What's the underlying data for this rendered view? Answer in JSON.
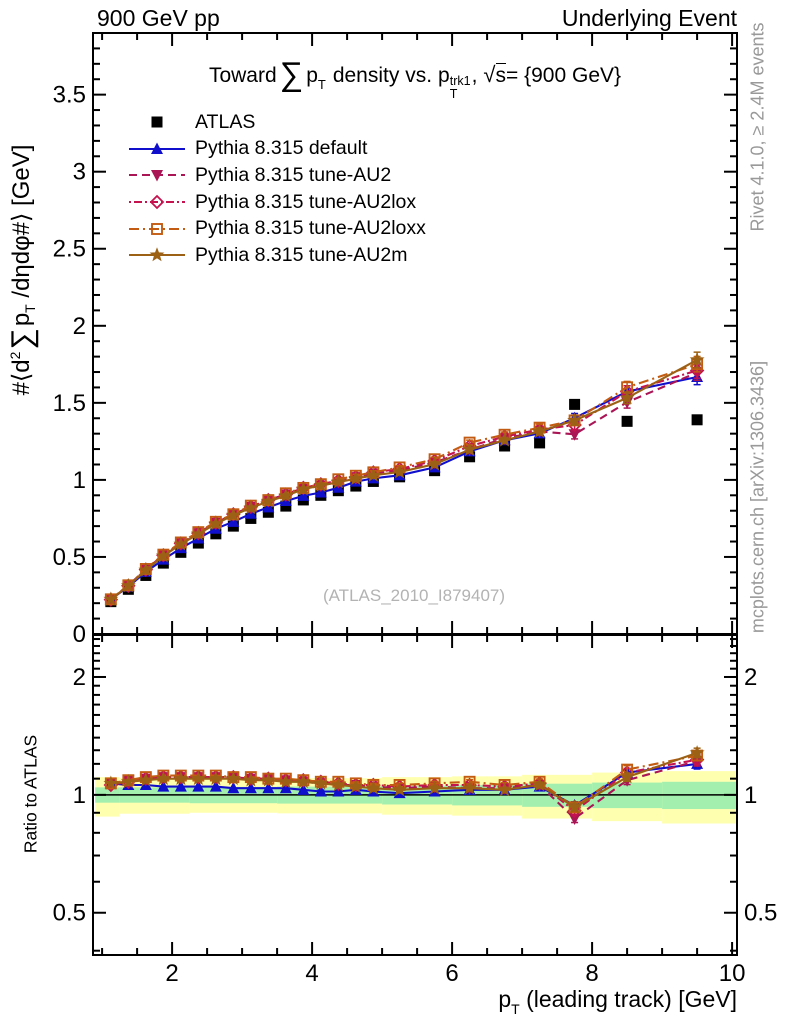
{
  "header": {
    "left": "900 GeV pp",
    "right": "Underlying Event"
  },
  "title": {
    "t1": "Toward",
    "sigma": "∑",
    "p1": "p",
    "sub1": "T",
    "t2": "density vs.",
    "p2": "p",
    "sup2": "trk1",
    "sub2": "T",
    "t3": ",",
    "sqrt": "√",
    "s": "s",
    "t4": " = {900 GeV}"
  },
  "axes": {
    "y_label": {
      "a": "#⟨d",
      "sup": "2",
      "sigma": "∑",
      "b": "p",
      "sub": "T",
      "c": " /dηdφ#⟩ [GeV]"
    },
    "x_label": {
      "p": "p",
      "sub": "T",
      "rest": " (leading track) [GeV]"
    },
    "ratio_label": "Ratio to ATLAS"
  },
  "side_notes": {
    "top": "Rivet 4.1.0, ≥ 2.4M events",
    "bottom": "mcplots.cern.ch [arXiv:1306.3436]"
  },
  "watermark": "(ATLAS_2010_I879407)",
  "chart_data": {
    "type": "line",
    "title": "Toward ∑ pT density vs. pT^trk1, √s = {900 GeV}",
    "xlabel": "pT (leading track) [GeV]",
    "ylabel": "#⟨d²∑ pT /dηdφ#⟩ [GeV]",
    "ratio_ylabel": "Ratio to ATLAS",
    "xlim": [
      0.87,
      10.07
    ],
    "ylim": [
      0,
      3.9
    ],
    "ratio_ylim": [
      0.39,
      2.56
    ],
    "ratio_scale": "log",
    "xticks": [
      2,
      4,
      6,
      8,
      10
    ],
    "x_minor_step": 0.5,
    "yticks": [
      0,
      0.5,
      1,
      1.5,
      2,
      2.5,
      3,
      3.5
    ],
    "y_minor_step": 0.1,
    "ratio_yticks": [
      0.5,
      1,
      2
    ],
    "ratio_minor_ticks": [
      0.4,
      0.6,
      0.7,
      0.8,
      0.9,
      1.1,
      1.2,
      1.3,
      1.4,
      1.5,
      1.6,
      1.7,
      1.8,
      1.9,
      2.1,
      2.2,
      2.3,
      2.4,
      2.5
    ],
    "grid": false,
    "legend_position": "top-left",
    "x": [
      1.125,
      1.375,
      1.625,
      1.875,
      2.125,
      2.375,
      2.625,
      2.875,
      3.125,
      3.375,
      3.625,
      3.875,
      4.125,
      4.375,
      4.625,
      4.875,
      5.25,
      5.75,
      6.25,
      6.75,
      7.25,
      7.75,
      8.5,
      9.5
    ],
    "reference": {
      "label": "ATLAS",
      "color": "#000000",
      "marker": "square-filled",
      "values": [
        0.21,
        0.29,
        0.38,
        0.46,
        0.53,
        0.59,
        0.65,
        0.7,
        0.75,
        0.79,
        0.83,
        0.87,
        0.9,
        0.93,
        0.96,
        0.99,
        1.02,
        1.06,
        1.15,
        1.22,
        1.24,
        1.49,
        1.38,
        1.39
      ]
    },
    "series": [
      {
        "label": "Pythia 8.315 default",
        "color": "#1010cc",
        "marker": "triangle-up",
        "line": "solid",
        "values": [
          0.225,
          0.307,
          0.403,
          0.483,
          0.557,
          0.62,
          0.683,
          0.728,
          0.78,
          0.822,
          0.863,
          0.896,
          0.918,
          0.949,
          0.989,
          1.01,
          1.03,
          1.081,
          1.185,
          1.257,
          1.302,
          1.401,
          1.573,
          1.668
        ],
        "ratio": [
          1.07,
          1.06,
          1.06,
          1.05,
          1.05,
          1.05,
          1.05,
          1.04,
          1.04,
          1.04,
          1.04,
          1.03,
          1.02,
          1.02,
          1.03,
          1.02,
          1.01,
          1.02,
          1.03,
          1.03,
          1.05,
          0.94,
          1.14,
          1.2
        ]
      },
      {
        "label": "Pythia 8.315 tune-AU2",
        "color": "#aa1556",
        "marker": "triangle-down",
        "line": "dash",
        "values": [
          0.225,
          0.316,
          0.418,
          0.511,
          0.588,
          0.655,
          0.722,
          0.777,
          0.825,
          0.869,
          0.905,
          0.94,
          0.963,
          0.986,
          1.018,
          1.04,
          1.061,
          1.113,
          1.196,
          1.269,
          1.314,
          1.296,
          1.504,
          1.696
        ],
        "ratio": [
          1.07,
          1.09,
          1.1,
          1.11,
          1.11,
          1.11,
          1.11,
          1.11,
          1.1,
          1.1,
          1.09,
          1.08,
          1.07,
          1.06,
          1.06,
          1.05,
          1.04,
          1.05,
          1.04,
          1.04,
          1.06,
          0.87,
          1.09,
          1.22
        ]
      },
      {
        "label": "Pythia 8.315 tune-AU2lox",
        "color": "#c4134e",
        "marker": "diamond-open",
        "line": "dashdot",
        "values": [
          0.223,
          0.313,
          0.418,
          0.511,
          0.588,
          0.655,
          0.722,
          0.777,
          0.825,
          0.869,
          0.905,
          0.948,
          0.972,
          0.995,
          1.018,
          1.049,
          1.071,
          1.124,
          1.219,
          1.281,
          1.327,
          1.356,
          1.573,
          1.71
        ],
        "ratio": [
          1.06,
          1.08,
          1.1,
          1.11,
          1.11,
          1.11,
          1.11,
          1.11,
          1.1,
          1.1,
          1.09,
          1.09,
          1.08,
          1.07,
          1.06,
          1.06,
          1.05,
          1.06,
          1.06,
          1.05,
          1.07,
          0.91,
          1.14,
          1.23
        ]
      },
      {
        "label": "Pythia 8.315 tune-AU2loxx",
        "color": "#c35c12",
        "marker": "square-open",
        "line": "longdashdot",
        "values": [
          0.225,
          0.316,
          0.422,
          0.515,
          0.594,
          0.661,
          0.728,
          0.777,
          0.833,
          0.869,
          0.913,
          0.948,
          0.972,
          1.004,
          1.027,
          1.049,
          1.081,
          1.134,
          1.242,
          1.293,
          1.339,
          1.386,
          1.601,
          1.751
        ],
        "ratio": [
          1.07,
          1.09,
          1.11,
          1.12,
          1.12,
          1.12,
          1.12,
          1.11,
          1.11,
          1.1,
          1.1,
          1.09,
          1.08,
          1.08,
          1.07,
          1.06,
          1.06,
          1.07,
          1.08,
          1.06,
          1.08,
          0.93,
          1.16,
          1.26
        ]
      },
      {
        "label": "Pythia 8.315 tune-AU2m",
        "color": "#9c6114",
        "marker": "star",
        "line": "solid",
        "values": [
          0.225,
          0.313,
          0.414,
          0.506,
          0.583,
          0.649,
          0.715,
          0.77,
          0.818,
          0.861,
          0.896,
          0.94,
          0.963,
          0.986,
          1.008,
          1.03,
          1.051,
          1.102,
          1.196,
          1.257,
          1.314,
          1.386,
          1.532,
          1.779
        ],
        "ratio": [
          1.07,
          1.08,
          1.09,
          1.1,
          1.1,
          1.1,
          1.1,
          1.1,
          1.09,
          1.09,
          1.08,
          1.08,
          1.07,
          1.06,
          1.05,
          1.04,
          1.03,
          1.04,
          1.04,
          1.03,
          1.06,
          0.93,
          1.11,
          1.28
        ]
      }
    ],
    "mc_errors": [
      0,
      0,
      0,
      0,
      0,
      0,
      0,
      0,
      0,
      0,
      0,
      0,
      0.008,
      0.008,
      0.009,
      0.01,
      0.012,
      0.014,
      0.016,
      0.018,
      0.022,
      0.03,
      0.038,
      0.05
    ],
    "bands": {
      "yellow": "#ffffb0",
      "green": "#a3f0ae",
      "segments": [
        {
          "x0": 0.9,
          "x1": 1.25,
          "y": [
            0.88,
            1.11
          ],
          "g": [
            0.955,
            1.045
          ]
        },
        {
          "x0": 1.25,
          "x1": 2.25,
          "y": [
            0.895,
            1.105
          ],
          "g": [
            0.955,
            1.045
          ]
        },
        {
          "x0": 2.25,
          "x1": 3.5,
          "y": [
            0.9,
            1.1
          ],
          "g": [
            0.952,
            1.048
          ]
        },
        {
          "x0": 3.5,
          "x1": 5.0,
          "y": [
            0.897,
            1.103
          ],
          "g": [
            0.95,
            1.05
          ]
        },
        {
          "x0": 5.0,
          "x1": 6.0,
          "y": [
            0.89,
            1.11
          ],
          "g": [
            0.945,
            1.055
          ]
        },
        {
          "x0": 6.0,
          "x1": 7.0,
          "y": [
            0.885,
            1.115
          ],
          "g": [
            0.94,
            1.06
          ]
        },
        {
          "x0": 7.0,
          "x1": 8.0,
          "y": [
            0.87,
            1.125
          ],
          "g": [
            0.932,
            1.068
          ]
        },
        {
          "x0": 8.0,
          "x1": 9.0,
          "y": [
            0.857,
            1.14
          ],
          "g": [
            0.925,
            1.075
          ]
        },
        {
          "x0": 9.0,
          "x1": 10.07,
          "y": [
            0.845,
            1.15
          ],
          "g": [
            0.92,
            1.08
          ]
        }
      ]
    }
  }
}
